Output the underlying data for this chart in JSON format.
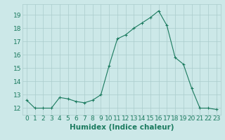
{
  "x": [
    0,
    1,
    2,
    3,
    4,
    5,
    6,
    7,
    8,
    9,
    10,
    11,
    12,
    13,
    14,
    15,
    16,
    17,
    18,
    19,
    20,
    21,
    22,
    23
  ],
  "y": [
    12.6,
    12.0,
    12.0,
    12.0,
    12.8,
    12.7,
    12.5,
    12.4,
    12.6,
    13.0,
    15.2,
    17.2,
    17.5,
    18.0,
    18.4,
    18.8,
    19.3,
    18.2,
    15.8,
    15.3,
    13.5,
    12.0,
    12.0,
    11.9
  ],
  "xlabel": "Humidex (Indice chaleur)",
  "ylabel": "",
  "title": "",
  "ylim": [
    11.5,
    19.8
  ],
  "xlim": [
    -0.5,
    23.5
  ],
  "yticks": [
    12,
    13,
    14,
    15,
    16,
    17,
    18,
    19
  ],
  "xticks": [
    0,
    1,
    2,
    3,
    4,
    5,
    6,
    7,
    8,
    9,
    10,
    11,
    12,
    13,
    14,
    15,
    16,
    17,
    18,
    19,
    20,
    21,
    22,
    23
  ],
  "line_color": "#1a7a5e",
  "marker": "+",
  "bg_color": "#cce8e8",
  "grid_color": "#aacccc",
  "tick_label_color": "#1a7a5e",
  "xlabel_color": "#1a7a5e",
  "xlabel_fontsize": 7.5,
  "tick_fontsize": 6.5
}
